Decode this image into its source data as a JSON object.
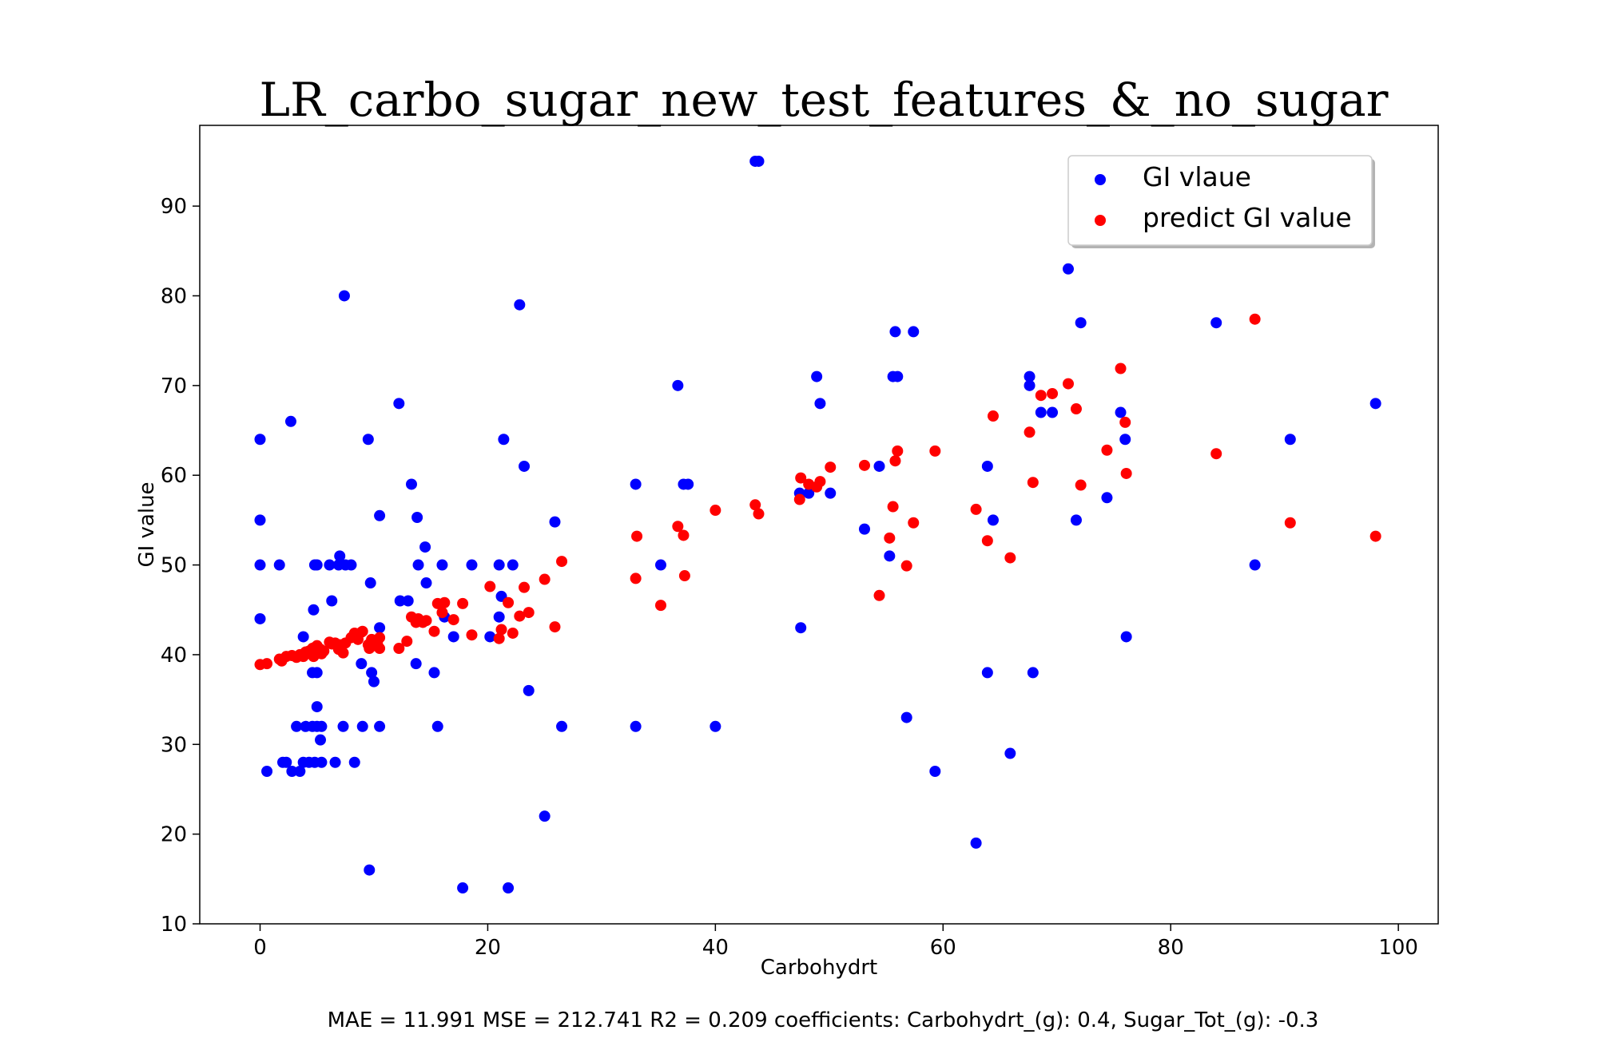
{
  "chart_data": {
    "type": "scatter",
    "title": "LR_carbo_sugar_new_test_features_&_no_sugar",
    "xlabel": "Carbohydrt",
    "ylabel": "GI value",
    "footer": "MAE = 11.991 MSE = 212.741 R2 = 0.209 coefficients: Carbohydrt_(g): 0.4, Sugar_Tot_(g): -0.3",
    "xlim": [
      -5.3,
      103.5
    ],
    "ylim": [
      10,
      99
    ],
    "xticks": [
      0,
      20,
      40,
      60,
      80,
      100
    ],
    "yticks": [
      10,
      20,
      30,
      40,
      50,
      60,
      70,
      80,
      90
    ],
    "grid": false,
    "legend_position": "upper-right",
    "series": [
      {
        "name": "GI vlaue",
        "color": "#0000ff",
        "points": [
          [
            0.0,
            64
          ],
          [
            0.0,
            55
          ],
          [
            0.0,
            50
          ],
          [
            0.0,
            44
          ],
          [
            0.6,
            27
          ],
          [
            1.7,
            50
          ],
          [
            2.0,
            28
          ],
          [
            2.3,
            28
          ],
          [
            2.7,
            66
          ],
          [
            2.8,
            27
          ],
          [
            3.2,
            32
          ],
          [
            3.5,
            27
          ],
          [
            3.8,
            28
          ],
          [
            3.8,
            42
          ],
          [
            4.0,
            32
          ],
          [
            4.3,
            28
          ],
          [
            4.6,
            32
          ],
          [
            4.6,
            38
          ],
          [
            4.7,
            45
          ],
          [
            4.8,
            28
          ],
          [
            4.8,
            50
          ],
          [
            5.0,
            38
          ],
          [
            5.0,
            50
          ],
          [
            5.0,
            32
          ],
          [
            5.0,
            34.2
          ],
          [
            5.3,
            30.5
          ],
          [
            5.4,
            28
          ],
          [
            5.4,
            32
          ],
          [
            6.1,
            50
          ],
          [
            6.3,
            46
          ],
          [
            6.6,
            28
          ],
          [
            6.9,
            50
          ],
          [
            7.0,
            51
          ],
          [
            7.3,
            32
          ],
          [
            7.4,
            80
          ],
          [
            7.5,
            50
          ],
          [
            8.0,
            50
          ],
          [
            8.3,
            28
          ],
          [
            8.9,
            39
          ],
          [
            9.0,
            32
          ],
          [
            9.5,
            64
          ],
          [
            9.6,
            16
          ],
          [
            9.7,
            48
          ],
          [
            9.8,
            38
          ],
          [
            10.0,
            37
          ],
          [
            10.5,
            55.5
          ],
          [
            10.5,
            43
          ],
          [
            10.5,
            32
          ],
          [
            12.2,
            68
          ],
          [
            12.3,
            46
          ],
          [
            13.0,
            46
          ],
          [
            13.3,
            59
          ],
          [
            13.7,
            39
          ],
          [
            13.8,
            55.3
          ],
          [
            13.9,
            50
          ],
          [
            14.5,
            52
          ],
          [
            14.6,
            48
          ],
          [
            15.3,
            38
          ],
          [
            15.6,
            32
          ],
          [
            16.0,
            50
          ],
          [
            16.2,
            44.2
          ],
          [
            17.0,
            42
          ],
          [
            17.8,
            14
          ],
          [
            18.6,
            50
          ],
          [
            20.2,
            42
          ],
          [
            21.0,
            44.2
          ],
          [
            21.0,
            50
          ],
          [
            21.2,
            46.5
          ],
          [
            21.4,
            64
          ],
          [
            21.8,
            14
          ],
          [
            22.2,
            50
          ],
          [
            22.8,
            79
          ],
          [
            23.2,
            61
          ],
          [
            23.6,
            36
          ],
          [
            25.0,
            22
          ],
          [
            25.9,
            54.8
          ],
          [
            26.5,
            32
          ],
          [
            33.0,
            59
          ],
          [
            33.0,
            32
          ],
          [
            35.2,
            50
          ],
          [
            36.7,
            70
          ],
          [
            37.2,
            59
          ],
          [
            37.6,
            59
          ],
          [
            40.0,
            32
          ],
          [
            43.5,
            95
          ],
          [
            43.8,
            95
          ],
          [
            47.4,
            58
          ],
          [
            47.5,
            43
          ],
          [
            48.2,
            58
          ],
          [
            48.9,
            71
          ],
          [
            49.2,
            68
          ],
          [
            50.1,
            58
          ],
          [
            53.1,
            54
          ],
          [
            54.4,
            61
          ],
          [
            55.3,
            51
          ],
          [
            55.6,
            71
          ],
          [
            55.8,
            76
          ],
          [
            56.0,
            71
          ],
          [
            56.8,
            33
          ],
          [
            57.4,
            76
          ],
          [
            59.3,
            27
          ],
          [
            62.9,
            19
          ],
          [
            63.9,
            38
          ],
          [
            63.9,
            61
          ],
          [
            64.4,
            55
          ],
          [
            65.9,
            29
          ],
          [
            67.6,
            71
          ],
          [
            67.6,
            70
          ],
          [
            67.9,
            38
          ],
          [
            68.6,
            67
          ],
          [
            69.6,
            67
          ],
          [
            71.0,
            83
          ],
          [
            71.7,
            55
          ],
          [
            72.1,
            77
          ],
          [
            74.4,
            57.5
          ],
          [
            75.6,
            67
          ],
          [
            76.0,
            64
          ],
          [
            76.1,
            42
          ],
          [
            84.0,
            77
          ],
          [
            87.4,
            50
          ],
          [
            90.5,
            64
          ],
          [
            98.0,
            68
          ]
        ]
      },
      {
        "name": "predict GI value",
        "color": "#ff0000",
        "points": [
          [
            0.0,
            38.9
          ],
          [
            0.6,
            39.0
          ],
          [
            1.7,
            39.5
          ],
          [
            1.9,
            39.3
          ],
          [
            2.3,
            39.8
          ],
          [
            2.8,
            39.9
          ],
          [
            3.2,
            39.7
          ],
          [
            3.5,
            40.0
          ],
          [
            3.8,
            39.8
          ],
          [
            4.0,
            40.3
          ],
          [
            4.3,
            40.4
          ],
          [
            4.6,
            40.7
          ],
          [
            4.7,
            39.8
          ],
          [
            4.8,
            40.8
          ],
          [
            5.0,
            40.2
          ],
          [
            5.0,
            41.0
          ],
          [
            5.3,
            40.6
          ],
          [
            5.4,
            40.1
          ],
          [
            5.6,
            40.4
          ],
          [
            6.1,
            41.4
          ],
          [
            6.3,
            41.2
          ],
          [
            6.6,
            41.3
          ],
          [
            6.9,
            40.6
          ],
          [
            7.0,
            41.1
          ],
          [
            7.3,
            40.2
          ],
          [
            7.5,
            41.3
          ],
          [
            8.0,
            41.9
          ],
          [
            8.3,
            42.4
          ],
          [
            8.6,
            41.7
          ],
          [
            8.9,
            42.5
          ],
          [
            9.0,
            42.6
          ],
          [
            9.5,
            41.1
          ],
          [
            9.6,
            40.7
          ],
          [
            9.8,
            41.7
          ],
          [
            10.0,
            41.0
          ],
          [
            10.3,
            41.3
          ],
          [
            10.5,
            40.7
          ],
          [
            10.5,
            41.9
          ],
          [
            12.2,
            40.7
          ],
          [
            12.9,
            41.5
          ],
          [
            13.3,
            44.2
          ],
          [
            13.7,
            43.6
          ],
          [
            13.9,
            44.0
          ],
          [
            14.3,
            43.6
          ],
          [
            14.6,
            43.8
          ],
          [
            15.3,
            42.6
          ],
          [
            15.6,
            45.7
          ],
          [
            16.0,
            44.7
          ],
          [
            16.2,
            45.8
          ],
          [
            17.0,
            43.9
          ],
          [
            17.8,
            45.7
          ],
          [
            18.6,
            42.2
          ],
          [
            20.2,
            47.6
          ],
          [
            21.0,
            41.8
          ],
          [
            21.2,
            42.8
          ],
          [
            21.8,
            45.8
          ],
          [
            22.2,
            42.4
          ],
          [
            22.8,
            44.3
          ],
          [
            23.2,
            47.5
          ],
          [
            23.6,
            44.7
          ],
          [
            25.0,
            48.4
          ],
          [
            25.9,
            43.1
          ],
          [
            26.5,
            50.4
          ],
          [
            33.0,
            48.5
          ],
          [
            33.1,
            53.2
          ],
          [
            35.2,
            45.5
          ],
          [
            36.7,
            54.3
          ],
          [
            37.2,
            53.3
          ],
          [
            37.3,
            48.8
          ],
          [
            40.0,
            56.1
          ],
          [
            43.5,
            56.7
          ],
          [
            43.8,
            55.7
          ],
          [
            47.4,
            57.3
          ],
          [
            47.5,
            59.7
          ],
          [
            48.2,
            59.0
          ],
          [
            48.9,
            58.7
          ],
          [
            49.2,
            59.3
          ],
          [
            50.1,
            60.9
          ],
          [
            53.1,
            61.1
          ],
          [
            54.4,
            46.6
          ],
          [
            55.3,
            53.0
          ],
          [
            55.6,
            56.5
          ],
          [
            55.8,
            61.6
          ],
          [
            56.0,
            62.7
          ],
          [
            56.8,
            49.9
          ],
          [
            57.4,
            54.7
          ],
          [
            59.3,
            62.7
          ],
          [
            62.9,
            56.2
          ],
          [
            63.9,
            52.7
          ],
          [
            64.4,
            66.6
          ],
          [
            65.9,
            50.8
          ],
          [
            67.6,
            64.8
          ],
          [
            67.9,
            59.2
          ],
          [
            68.6,
            68.9
          ],
          [
            69.6,
            69.1
          ],
          [
            71.0,
            70.2
          ],
          [
            71.7,
            67.4
          ],
          [
            72.1,
            58.9
          ],
          [
            74.4,
            62.8
          ],
          [
            75.6,
            71.9
          ],
          [
            76.0,
            65.9
          ],
          [
            76.1,
            60.2
          ],
          [
            84.0,
            62.4
          ],
          [
            87.4,
            77.4
          ],
          [
            90.5,
            54.7
          ],
          [
            98.0,
            53.2
          ]
        ]
      }
    ]
  }
}
